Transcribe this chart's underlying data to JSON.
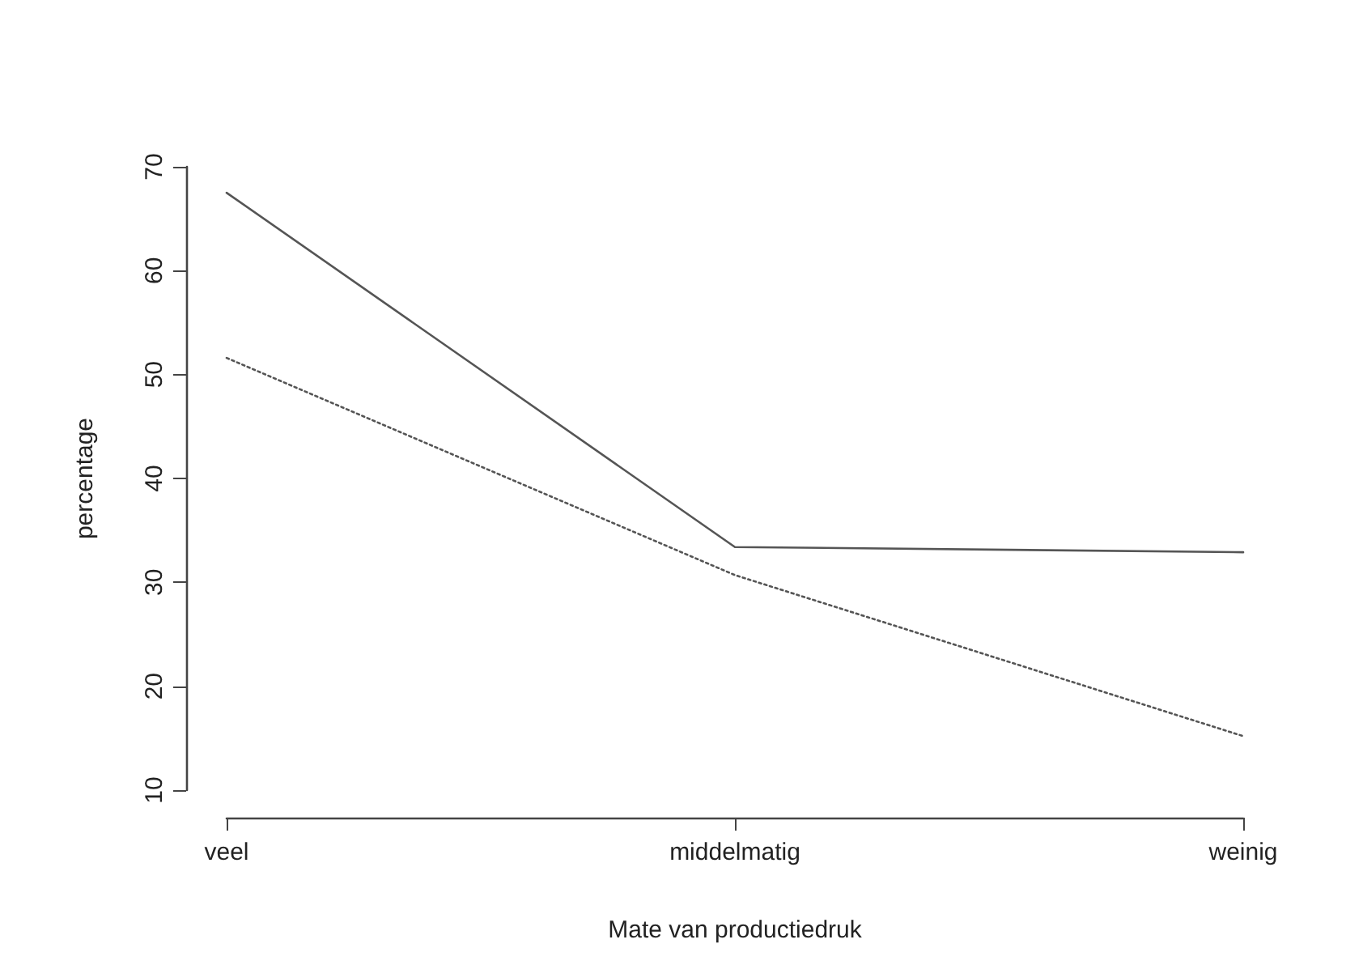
{
  "chart_data": {
    "type": "line",
    "xlabel": "Mate van productiedruk",
    "ylabel": "percentage",
    "categories": [
      "veel",
      "middelmatig",
      "weinig"
    ],
    "series": [
      {
        "color": "#555555",
        "line_style": "solid",
        "values": [
          67.5,
          33.4,
          32.9
        ]
      },
      {
        "color": "#555555",
        "line_style": "dotted",
        "values": [
          51.6,
          30.7,
          15.2
        ]
      }
    ],
    "ylim": [
      10,
      70
    ],
    "yticks": [
      10,
      20,
      30,
      40,
      50,
      60,
      70
    ],
    "grid": false,
    "marker": "none"
  }
}
